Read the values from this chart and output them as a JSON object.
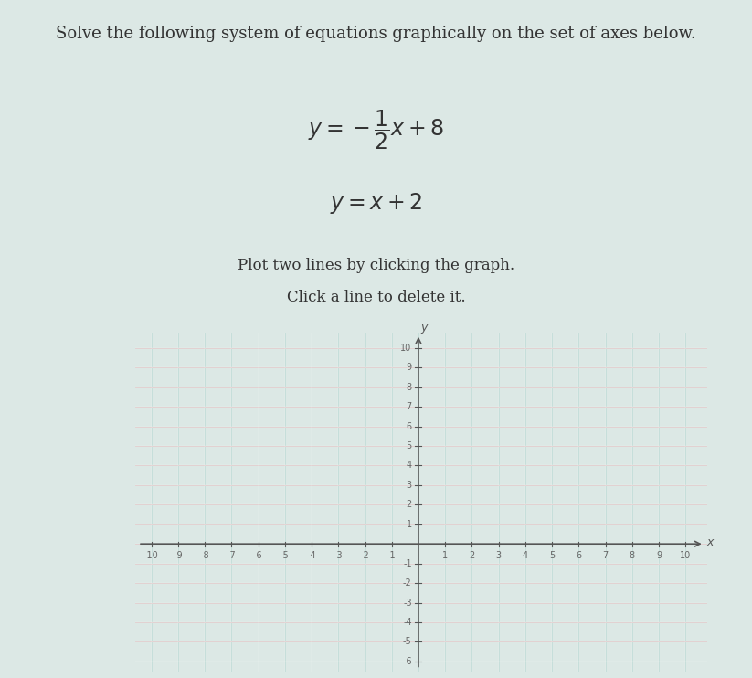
{
  "title_text": "Solve the following system of equations graphically on the set of axes below.",
  "eq1_latex": "$y = -\\dfrac{1}{2}x + 8$",
  "eq2_latex": "$y = x + 2$",
  "instruction1": "Plot two lines by clicking the graph.",
  "instruction2": "Click a line to delete it.",
  "xlabel": "x",
  "ylabel": "y",
  "xlim": [
    -10,
    10
  ],
  "ylim": [
    -6,
    10
  ],
  "background_color": "#cde8e2",
  "grid_color_v": "#b8dcd6",
  "grid_color_h": "#e8c8c8",
  "axis_color": "#555555",
  "tick_color": "#666666",
  "text_color": "#333333",
  "page_background": "#dce8e5",
  "title_fontsize": 13,
  "eq_fontsize": 17,
  "instr_fontsize": 12,
  "tick_fontsize": 7
}
